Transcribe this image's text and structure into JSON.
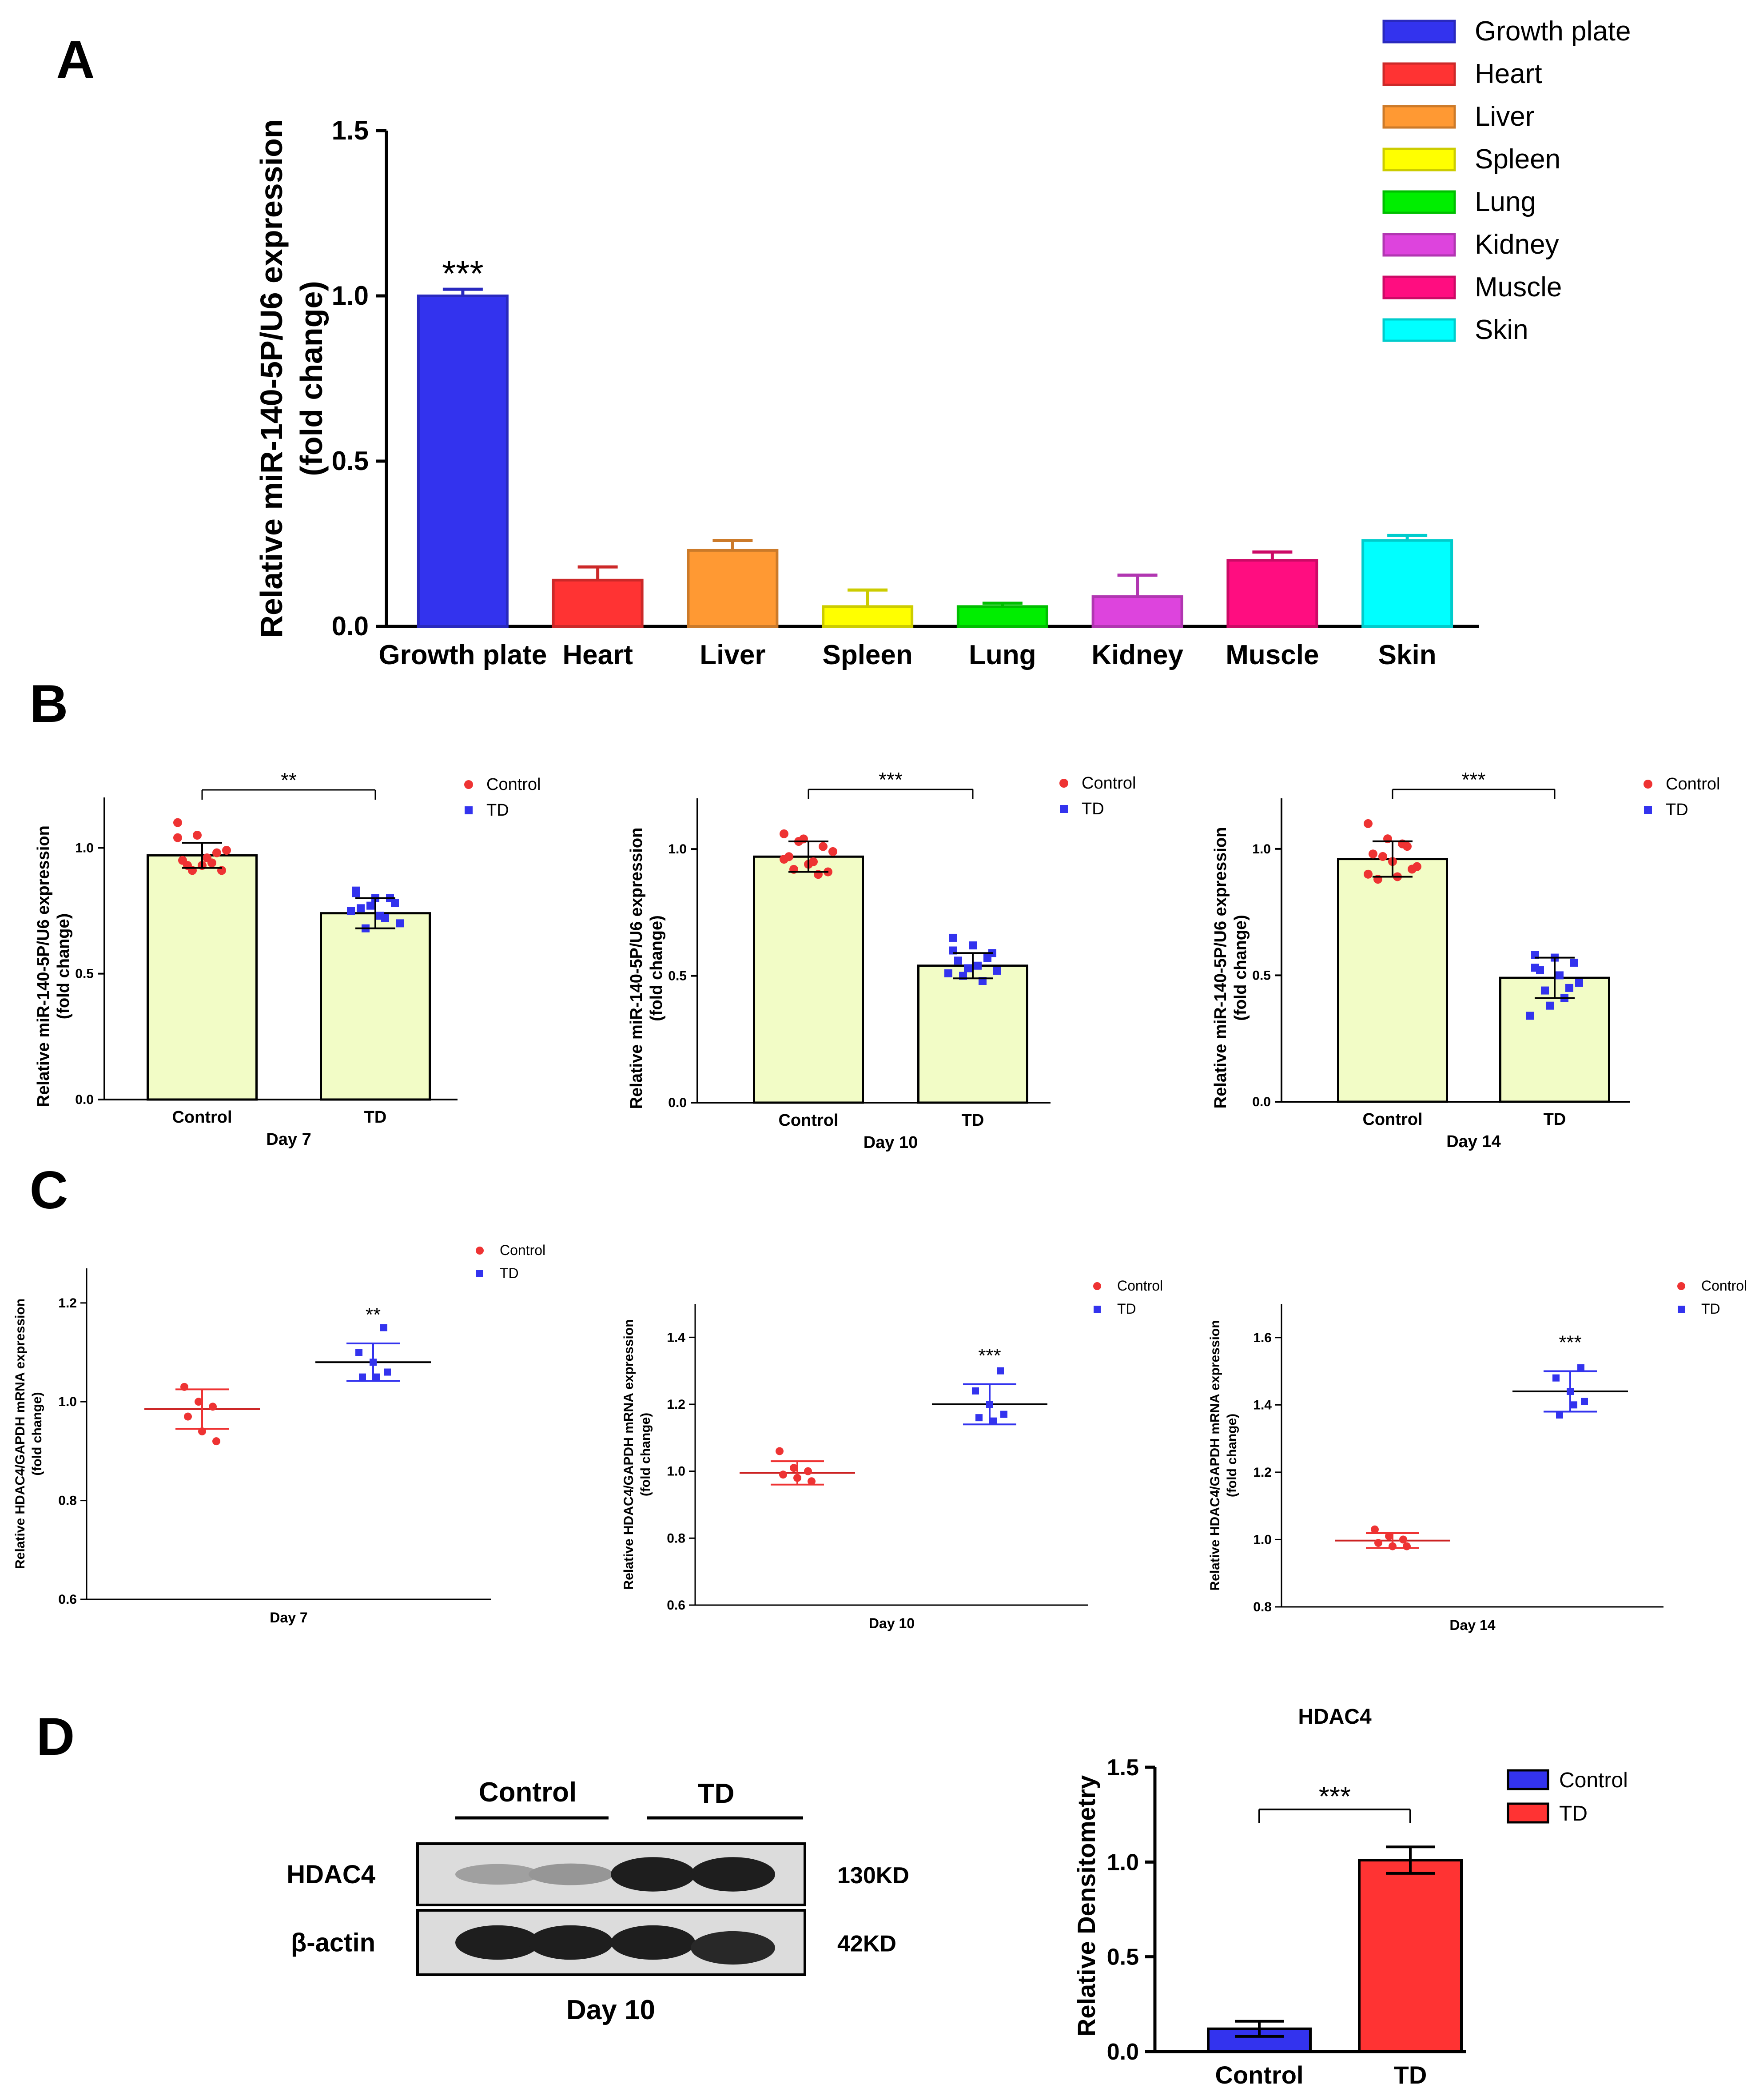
{
  "panel_labels": [
    "A",
    "B",
    "C",
    "D"
  ],
  "chart_data": [
    {
      "id": "A",
      "type": "bar",
      "ylabel_lines": [
        "Relative miR-140-5P/U6 expression",
        "(fold change)"
      ],
      "ylim": [
        0,
        1.5
      ],
      "yticks": [
        "0.0",
        "0.5",
        "1.0",
        "1.5"
      ],
      "categories": [
        "Growth plate",
        "Heart",
        "Liver",
        "Spleen",
        "Lung",
        "Kidney",
        "Muscle",
        "Skin"
      ],
      "values": [
        1.0,
        0.14,
        0.23,
        0.06,
        0.06,
        0.09,
        0.2,
        0.26
      ],
      "errors": [
        0.02,
        0.04,
        0.03,
        0.05,
        0.01,
        0.065,
        0.025,
        0.015
      ],
      "colors": [
        "#3333ee",
        "#ff3333",
        "#ff9933",
        "#ffff00",
        "#00ee00",
        "#dd44dd",
        "#ff0d80",
        "#00ffff"
      ],
      "annotations": [
        {
          "category": "Growth plate",
          "text": "***"
        }
      ],
      "legend": [
        "Growth plate",
        "Heart",
        "Liver",
        "Spleen",
        "Lung",
        "Kidney",
        "Muscle",
        "Skin"
      ],
      "legend_position": "top-right"
    },
    {
      "id": "B-day7",
      "type": "bar",
      "xlabel": "Day 7",
      "ylabel_lines": [
        "Relative miR-140-5P/U6 expression",
        "(fold change)"
      ],
      "ylim": [
        0,
        1.2
      ],
      "yticks": [
        "0.0",
        "0.5",
        "1.0"
      ],
      "categories": [
        "Control",
        "TD"
      ],
      "values": [
        0.97,
        0.74
      ],
      "errors": [
        0.05,
        0.06
      ],
      "points": [
        [
          1.1,
          1.05,
          0.98,
          0.95,
          0.93,
          0.91,
          0.93,
          0.96,
          0.99,
          0.91,
          0.94,
          1.04
        ],
        [
          0.83,
          0.8,
          0.78,
          0.76,
          0.73,
          0.7,
          0.68,
          0.72,
          0.75,
          0.77,
          0.8,
          0.82
        ]
      ],
      "bar_color": "#f2fcc6",
      "point_colors": [
        "#ee3333",
        "#3333ee"
      ],
      "significance": "**",
      "legend": [
        "Control",
        "TD"
      ]
    },
    {
      "id": "B-day10",
      "type": "bar",
      "xlabel": "Day 10",
      "ylabel_lines": [
        "Relative miR-140-5P/U6 expression",
        "(fold change)"
      ],
      "ylim": [
        0,
        1.2
      ],
      "yticks": [
        "0.0",
        "0.5",
        "1.0"
      ],
      "categories": [
        "Control",
        "TD"
      ],
      "values": [
        0.97,
        0.54
      ],
      "errors": [
        0.06,
        0.05
      ],
      "points": [
        [
          1.06,
          1.04,
          1.01,
          0.97,
          0.94,
          0.91,
          0.92,
          0.95,
          0.99,
          1.03,
          0.9,
          0.96
        ],
        [
          0.65,
          0.62,
          0.59,
          0.56,
          0.54,
          0.52,
          0.5,
          0.48,
          0.51,
          0.53,
          0.57,
          0.6
        ]
      ],
      "bar_color": "#f2fcc6",
      "point_colors": [
        "#ee3333",
        "#3333ee"
      ],
      "significance": "***",
      "legend": [
        "Control",
        "TD"
      ]
    },
    {
      "id": "B-day14",
      "type": "bar",
      "xlabel": "Day 14",
      "ylabel_lines": [
        "Relative miR-140-5P/U6 expression",
        "(fold change)"
      ],
      "ylim": [
        0,
        1.2
      ],
      "yticks": [
        "0.0",
        "0.5",
        "1.0"
      ],
      "categories": [
        "Control",
        "TD"
      ],
      "values": [
        0.96,
        0.49
      ],
      "errors": [
        0.07,
        0.08
      ],
      "points": [
        [
          1.1,
          1.04,
          1.01,
          0.98,
          0.95,
          0.92,
          0.88,
          0.89,
          0.93,
          0.97,
          1.02,
          0.9
        ],
        [
          0.58,
          0.57,
          0.55,
          0.52,
          0.5,
          0.47,
          0.44,
          0.41,
          0.34,
          0.38,
          0.45,
          0.53
        ]
      ],
      "bar_color": "#f2fcc6",
      "point_colors": [
        "#ee3333",
        "#3333ee"
      ],
      "significance": "***",
      "legend": [
        "Control",
        "TD"
      ]
    },
    {
      "id": "C-day7",
      "type": "scatter",
      "xlabel": "Day 7",
      "ylabel_lines": [
        "Relative HDAC4/GAPDH mRNA expression",
        "(fold change)"
      ],
      "ylim": [
        0.6,
        1.27
      ],
      "yticks": [
        "0.6",
        "0.8",
        "1.0",
        "1.2"
      ],
      "groups": [
        "Control",
        "TD"
      ],
      "means": [
        0.985,
        1.08
      ],
      "errors": [
        0.04,
        0.038
      ],
      "points": [
        [
          1.03,
          1.0,
          0.99,
          0.97,
          0.94,
          0.92
        ],
        [
          1.15,
          1.1,
          1.08,
          1.06,
          1.05,
          1.05
        ]
      ],
      "point_colors": [
        "#ee3333",
        "#3333ee"
      ],
      "annotations": [
        {
          "group": "TD",
          "text": "**"
        }
      ],
      "legend": [
        "Control",
        "TD"
      ]
    },
    {
      "id": "C-day10",
      "type": "scatter",
      "xlabel": "Day 10",
      "ylabel_lines": [
        "Relative HDAC4/GAPDH mRNA expression",
        "(fold change)"
      ],
      "ylim": [
        0.6,
        1.5
      ],
      "yticks": [
        "0.6",
        "0.8",
        "1.0",
        "1.2",
        "1.4"
      ],
      "groups": [
        "Control",
        "TD"
      ],
      "means": [
        0.995,
        1.2
      ],
      "errors": [
        0.035,
        0.06
      ],
      "points": [
        [
          1.06,
          1.01,
          1.0,
          0.99,
          0.98,
          0.97
        ],
        [
          1.3,
          1.24,
          1.2,
          1.17,
          1.16,
          1.15
        ]
      ],
      "point_colors": [
        "#ee3333",
        "#3333ee"
      ],
      "annotations": [
        {
          "group": "TD",
          "text": "***"
        }
      ],
      "legend": [
        "Control",
        "TD"
      ]
    },
    {
      "id": "C-day14",
      "type": "scatter",
      "xlabel": "Day 14",
      "ylabel_lines": [
        "Relative HDAC4/GAPDH mRNA expression",
        "(fold change)"
      ],
      "ylim": [
        0.8,
        1.7
      ],
      "yticks": [
        "0.8",
        "1.0",
        "1.2",
        "1.4",
        "1.6"
      ],
      "groups": [
        "Control",
        "TD"
      ],
      "means": [
        0.997,
        1.44
      ],
      "errors": [
        0.022,
        0.06
      ],
      "points": [
        [
          1.03,
          1.01,
          1.0,
          0.99,
          0.98,
          0.98
        ],
        [
          1.51,
          1.48,
          1.44,
          1.41,
          1.37,
          1.4
        ]
      ],
      "point_colors": [
        "#ee3333",
        "#3333ee"
      ],
      "annotations": [
        {
          "group": "TD",
          "text": "***"
        }
      ],
      "legend": [
        "Control",
        "TD"
      ]
    },
    {
      "id": "D-densitometry",
      "type": "bar",
      "title": "HDAC4",
      "ylabel": "Relative Densitometry",
      "ylim": [
        0,
        1.5
      ],
      "yticks": [
        "0.0",
        "0.5",
        "1.0",
        "1.5"
      ],
      "categories": [
        "Control",
        "TD"
      ],
      "values": [
        0.12,
        1.01
      ],
      "errors": [
        0.04,
        0.07
      ],
      "colors": [
        "#3333ee",
        "#ff3333"
      ],
      "significance": "***",
      "legend": [
        "Control",
        "TD"
      ],
      "legend_position": "top-right"
    }
  ],
  "western_blot": {
    "groups": [
      "Control",
      "TD"
    ],
    "rows": [
      {
        "label": "HDAC4",
        "size": "130KD",
        "intensities": [
          0.3,
          0.35,
          0.95,
          0.95
        ]
      },
      {
        "label": "β-actin",
        "size": "42KD",
        "intensities": [
          0.95,
          0.95,
          0.95,
          0.9
        ]
      }
    ],
    "caption": "Day 10"
  }
}
